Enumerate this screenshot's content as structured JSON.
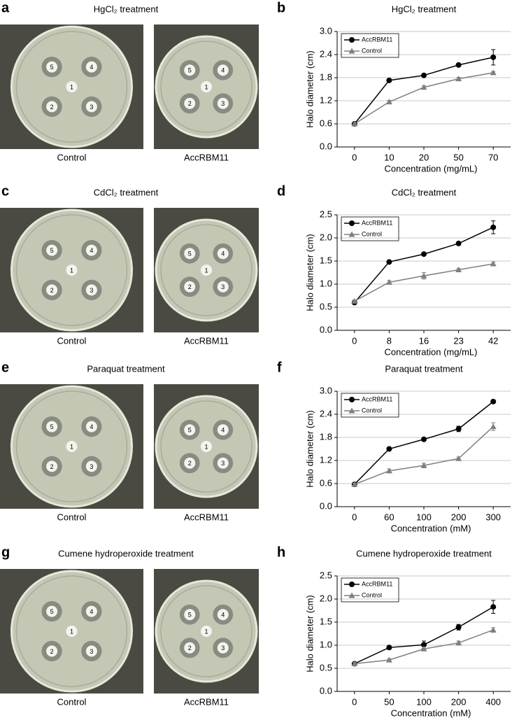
{
  "spot_labels": [
    "1",
    "2",
    "3",
    "4",
    "5"
  ],
  "photo_panels": [
    {
      "letter": "a",
      "title": "HgCl₂ treatment",
      "captions": [
        "Control",
        "AccRBM11"
      ]
    },
    {
      "letter": "c",
      "title": "CdCl₂ treatment",
      "captions": [
        "Control",
        "AccRBM11"
      ]
    },
    {
      "letter": "e",
      "title": "Paraquat treatment",
      "captions": [
        "Control",
        "AccRBM11"
      ]
    },
    {
      "letter": "g",
      "title": "Cumene hydroperoxide treatment",
      "captions": [
        "Control",
        "AccRBM11"
      ]
    }
  ],
  "chart_data": [
    {
      "type": "line",
      "panel": "b",
      "title": "HgCl₂ treatment",
      "x_label": "Concentration (mg/mL)",
      "y_label": "Halo diameter (cm)",
      "categories": [
        "0",
        "10",
        "20",
        "50",
        "70"
      ],
      "ylim": [
        0,
        3
      ],
      "yticks": [
        {
          "value": 0,
          "label": "0.0"
        },
        0.6,
        1.2,
        {
          "value": 1.8,
          "label": "1.8"
        },
        2.4,
        {
          "value": 3,
          "label": "3.0"
        }
      ],
      "grid": true,
      "legend": "top-left",
      "series": [
        {
          "name": "AccRBM11",
          "color": "#000000",
          "marker": "circle",
          "values": [
            0.6,
            1.73,
            1.86,
            2.13,
            2.33
          ],
          "errors": [
            0.03,
            0.04,
            0.04,
            0.04,
            0.2
          ]
        },
        {
          "name": "Control",
          "color": "#7f7f7f",
          "marker": "triangle",
          "values": [
            0.6,
            1.17,
            1.55,
            1.77,
            1.93
          ],
          "errors": [
            0.03,
            0.04,
            0.04,
            0.04,
            0.03
          ]
        }
      ]
    },
    {
      "type": "line",
      "panel": "d",
      "title": "CdCl₂ treatment",
      "x_label": "Concentration (mg/mL)",
      "y_label": "Halo diameter (cm)",
      "categories": [
        "0",
        "8",
        "16",
        "23",
        "42"
      ],
      "ylim": [
        0,
        2.5
      ],
      "yticks": [
        {
          "value": 0,
          "label": "0.0"
        },
        0.5,
        {
          "value": 1,
          "label": "1.0"
        },
        1.5,
        {
          "value": 2,
          "label": "2.0"
        },
        2.5
      ],
      "grid": true,
      "legend": "top-left",
      "series": [
        {
          "name": "AccRBM11",
          "color": "#000000",
          "marker": "circle",
          "values": [
            0.6,
            1.48,
            1.65,
            1.88,
            2.23
          ],
          "errors": [
            0.03,
            0.03,
            0.03,
            0.03,
            0.14
          ]
        },
        {
          "name": "Control",
          "color": "#7f7f7f",
          "marker": "triangle",
          "values": [
            0.63,
            1.04,
            1.18,
            1.31,
            1.44
          ],
          "errors": [
            0.03,
            0.04,
            0.07,
            0.03,
            0.04
          ]
        }
      ]
    },
    {
      "type": "line",
      "panel": "f",
      "title": "Paraquat treatment",
      "x_label": "Concentration (mM)",
      "y_label": "Halo diameter (cm)",
      "categories": [
        "0",
        "60",
        "100",
        "200",
        "300"
      ],
      "ylim": [
        0,
        3
      ],
      "yticks": [
        {
          "value": 0,
          "label": "0.0"
        },
        0.6,
        1.2,
        {
          "value": 1.8,
          "label": "1.8"
        },
        2.4,
        {
          "value": 3,
          "label": "3.0"
        }
      ],
      "grid": true,
      "legend": "top-left",
      "series": [
        {
          "name": "AccRBM11",
          "color": "#000000",
          "marker": "circle",
          "values": [
            0.58,
            1.5,
            1.75,
            2.02,
            2.73
          ],
          "errors": [
            0.03,
            0.03,
            0.04,
            0.07,
            0.04
          ]
        },
        {
          "name": "Control",
          "color": "#7f7f7f",
          "marker": "triangle",
          "values": [
            0.58,
            0.93,
            1.07,
            1.25,
            2.08
          ],
          "errors": [
            0.03,
            0.05,
            0.06,
            0.04,
            0.1
          ]
        }
      ]
    },
    {
      "type": "line",
      "panel": "h",
      "title": "Cumene hydroperoxide treatment",
      "x_label": "Concentration (mM)",
      "y_label": "Halo diameter (cm)",
      "categories": [
        "0",
        "50",
        "100",
        "200",
        "400"
      ],
      "ylim": [
        0,
        2.5
      ],
      "yticks": [
        {
          "value": 0,
          "label": "0.0"
        },
        0.5,
        {
          "value": 1,
          "label": "1.0"
        },
        1.5,
        {
          "value": 2,
          "label": "2.0"
        },
        2.5
      ],
      "grid": true,
      "legend": "top-left",
      "series": [
        {
          "name": "AccRBM11",
          "color": "#000000",
          "marker": "circle",
          "values": [
            0.6,
            0.95,
            1.01,
            1.39,
            1.83
          ],
          "errors": [
            0.03,
            0.04,
            0.08,
            0.06,
            0.14
          ]
        },
        {
          "name": "Control",
          "color": "#7f7f7f",
          "marker": "triangle",
          "values": [
            0.6,
            0.68,
            0.92,
            1.05,
            1.33
          ],
          "errors": [
            0.03,
            0.03,
            0.04,
            0.04,
            0.05
          ]
        }
      ]
    }
  ]
}
